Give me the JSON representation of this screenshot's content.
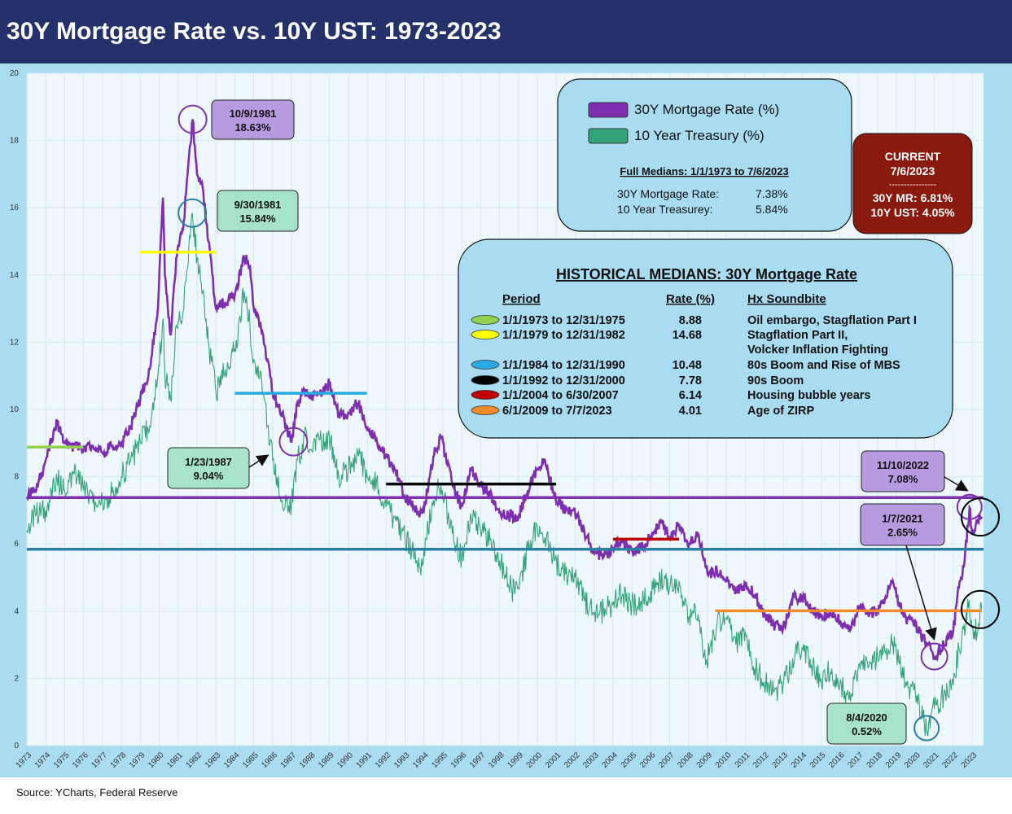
{
  "title": "30Y Mortgage Rate vs. 10Y UST: 1973-2023",
  "source": "Source: YCharts, Federal Reserve",
  "colors": {
    "mortgage": "#7d2fb0",
    "treasury": "#35a37a",
    "mortgage_median_line": "#7d2fb0",
    "treasury_median_line": "#2a7fa3",
    "header_bg": "#24316a",
    "frame_bg": "#a9dcf0",
    "plot_bg": "#eef8fc",
    "current_box": "#8b1a0e"
  },
  "chart_data": {
    "type": "line",
    "title": "30Y Mortgage Rate vs. 10Y UST: 1973-2023",
    "xlabel": "",
    "ylabel": "",
    "ylim": [
      0,
      20
    ],
    "yticks": [
      0,
      2,
      4,
      6,
      8,
      10,
      12,
      14,
      16,
      18,
      20
    ],
    "xlim": [
      1973.0,
      2023.6
    ],
    "xticks": [
      "1973",
      "1974",
      "1975",
      "1976",
      "1977",
      "1978",
      "1979",
      "1980",
      "1981",
      "1982",
      "1983",
      "1984",
      "1985",
      "1986",
      "1987",
      "1988",
      "1989",
      "1990",
      "1991",
      "1992",
      "1993",
      "1994",
      "1995",
      "1996",
      "1997",
      "1998",
      "1999",
      "2000",
      "2001",
      "2002",
      "2003",
      "2004",
      "2005",
      "2006",
      "2007",
      "2008",
      "2009",
      "2010",
      "2011",
      "2012",
      "2013",
      "2014",
      "2015",
      "2016",
      "2017",
      "2018",
      "2019",
      "2020",
      "2021",
      "2022",
      "2023"
    ],
    "grid": true,
    "legend": "top-center",
    "series": [
      {
        "name": "30Y Mortgage Rate (%)",
        "x": [
          1973.0,
          1973.5,
          1974.0,
          1974.6,
          1975.0,
          1975.5,
          1976.0,
          1976.5,
          1977.0,
          1977.5,
          1978.0,
          1978.5,
          1979.0,
          1979.5,
          1979.9,
          1980.2,
          1980.3,
          1980.6,
          1980.9,
          1981.0,
          1981.3,
          1981.5,
          1981.77,
          1982.0,
          1982.3,
          1982.6,
          1983.0,
          1983.5,
          1984.0,
          1984.5,
          1984.8,
          1985.0,
          1985.5,
          1986.0,
          1986.5,
          1987.0,
          1987.3,
          1987.8,
          1988.0,
          1988.5,
          1989.0,
          1989.5,
          1990.0,
          1990.5,
          1991.0,
          1991.5,
          1992.0,
          1992.5,
          1993.0,
          1993.8,
          1994.0,
          1994.5,
          1994.9,
          1995.5,
          1996.0,
          1996.5,
          1997.0,
          1997.5,
          1998.0,
          1998.8,
          1999.0,
          1999.5,
          2000.0,
          2000.4,
          2000.9,
          2001.5,
          2002.0,
          2002.5,
          2003.0,
          2003.5,
          2004.0,
          2004.5,
          2005.0,
          2005.5,
          2006.0,
          2006.5,
          2007.0,
          2007.5,
          2008.0,
          2008.5,
          2009.0,
          2009.5,
          2010.0,
          2010.5,
          2011.0,
          2011.5,
          2012.0,
          2012.5,
          2013.0,
          2013.5,
          2014.0,
          2014.5,
          2015.0,
          2015.5,
          2016.0,
          2016.6,
          2017.0,
          2017.5,
          2018.0,
          2018.8,
          2019.0,
          2019.5,
          2020.0,
          2020.5,
          2021.0,
          2021.5,
          2022.0,
          2022.3,
          2022.6,
          2022.86,
          2023.0,
          2023.3,
          2023.51
        ],
        "values": [
          7.4,
          7.6,
          8.5,
          9.6,
          9.0,
          8.9,
          8.8,
          8.9,
          8.7,
          8.9,
          9.0,
          9.5,
          10.3,
          11.2,
          12.8,
          16.3,
          14.0,
          12.2,
          14.5,
          14.9,
          15.6,
          17.0,
          18.63,
          17.0,
          16.6,
          15.0,
          13.0,
          13.2,
          13.4,
          14.5,
          14.3,
          13.0,
          12.2,
          10.5,
          9.9,
          9.04,
          10.2,
          10.6,
          10.3,
          10.5,
          10.8,
          9.8,
          9.9,
          10.2,
          9.5,
          9.1,
          8.6,
          8.2,
          7.4,
          6.9,
          7.0,
          8.6,
          9.2,
          7.8,
          7.1,
          8.2,
          7.7,
          7.5,
          6.9,
          6.8,
          6.8,
          7.6,
          8.2,
          8.5,
          7.4,
          7.0,
          6.9,
          6.3,
          5.8,
          5.6,
          5.9,
          6.1,
          5.8,
          5.9,
          6.2,
          6.7,
          6.2,
          6.6,
          5.9,
          6.3,
          5.1,
          5.2,
          4.9,
          4.6,
          4.8,
          4.5,
          3.9,
          3.6,
          3.5,
          4.4,
          4.4,
          4.1,
          3.8,
          4.0,
          3.7,
          3.5,
          4.1,
          3.9,
          4.0,
          4.9,
          4.4,
          3.8,
          3.6,
          3.1,
          2.65,
          3.0,
          3.4,
          4.7,
          5.5,
          7.08,
          6.3,
          6.7,
          6.81
        ]
      },
      {
        "name": "10 Year Treasury (%)",
        "x": [
          1973.0,
          1973.5,
          1974.0,
          1974.6,
          1975.0,
          1975.5,
          1976.0,
          1976.5,
          1977.0,
          1977.5,
          1978.0,
          1978.5,
          1979.0,
          1979.5,
          1979.9,
          1980.2,
          1980.3,
          1980.6,
          1980.9,
          1981.0,
          1981.3,
          1981.5,
          1981.75,
          1982.0,
          1982.3,
          1982.6,
          1983.0,
          1983.5,
          1984.0,
          1984.5,
          1984.8,
          1985.0,
          1985.5,
          1986.0,
          1986.5,
          1987.0,
          1987.3,
          1987.8,
          1988.0,
          1988.5,
          1989.0,
          1989.5,
          1990.0,
          1990.5,
          1991.0,
          1991.5,
          1992.0,
          1992.5,
          1993.0,
          1993.8,
          1994.0,
          1994.5,
          1994.9,
          1995.5,
          1996.0,
          1996.5,
          1997.0,
          1997.5,
          1998.0,
          1998.8,
          1999.0,
          1999.5,
          2000.0,
          2000.4,
          2000.9,
          2001.5,
          2002.0,
          2002.5,
          2003.0,
          2003.5,
          2004.0,
          2004.5,
          2005.0,
          2005.5,
          2006.0,
          2006.5,
          2007.0,
          2007.5,
          2008.0,
          2008.5,
          2008.9,
          2009.5,
          2010.0,
          2010.5,
          2011.0,
          2011.5,
          2012.0,
          2012.5,
          2013.0,
          2013.5,
          2014.0,
          2014.5,
          2015.0,
          2015.5,
          2016.0,
          2016.6,
          2017.0,
          2017.5,
          2018.0,
          2018.8,
          2019.0,
          2019.5,
          2020.0,
          2020.59,
          2021.0,
          2021.5,
          2022.0,
          2022.3,
          2022.8,
          2023.0,
          2023.3,
          2023.51
        ],
        "values": [
          6.4,
          6.9,
          7.0,
          7.9,
          7.6,
          8.1,
          7.6,
          7.2,
          7.3,
          7.5,
          8.0,
          8.5,
          9.0,
          9.5,
          10.8,
          12.7,
          11.0,
          10.3,
          12.5,
          12.6,
          13.0,
          14.2,
          15.84,
          14.5,
          13.5,
          12.0,
          10.5,
          11.2,
          11.8,
          13.5,
          12.5,
          11.5,
          10.5,
          8.5,
          7.3,
          7.2,
          8.5,
          9.3,
          8.8,
          9.1,
          9.2,
          8.0,
          8.2,
          8.7,
          8.0,
          7.9,
          7.1,
          6.7,
          6.2,
          5.3,
          5.8,
          7.3,
          7.8,
          6.3,
          5.6,
          6.8,
          6.4,
          6.1,
          5.5,
          4.5,
          4.7,
          5.8,
          6.5,
          6.2,
          5.5,
          5.1,
          5.0,
          4.3,
          3.9,
          4.0,
          4.2,
          4.5,
          4.2,
          4.3,
          4.6,
          5.0,
          4.7,
          4.9,
          3.8,
          3.9,
          2.4,
          3.6,
          3.8,
          3.0,
          3.4,
          2.3,
          1.9,
          1.6,
          1.8,
          2.6,
          2.9,
          2.4,
          2.0,
          2.2,
          1.8,
          1.5,
          2.4,
          2.3,
          2.6,
          3.1,
          2.7,
          1.9,
          1.5,
          0.52,
          1.1,
          1.5,
          1.8,
          2.9,
          4.1,
          3.5,
          3.4,
          4.05
        ]
      }
    ],
    "median_lines": [
      {
        "name": "30Y Mortgage Rate full median",
        "value": 7.38,
        "color": "#7d2fb0"
      },
      {
        "name": "10 Year Treasury full median",
        "value": 5.84,
        "color": "#2a7fa3"
      }
    ],
    "period_medians": [
      {
        "x0": 1973.0,
        "x1": 1975.99,
        "value": 8.88,
        "color": "#92d050"
      },
      {
        "x0": 1979.0,
        "x1": 1982.99,
        "value": 14.68,
        "color": "#ffff00"
      },
      {
        "x0": 1984.0,
        "x1": 1990.99,
        "value": 10.48,
        "color": "#29abe2"
      },
      {
        "x0": 1992.0,
        "x1": 2000.99,
        "value": 7.78,
        "color": "#000000"
      },
      {
        "x0": 2004.0,
        "x1": 2007.5,
        "value": 6.14,
        "color": "#c00000"
      },
      {
        "x0": 2009.42,
        "x1": 2023.51,
        "value": 4.01,
        "color": "#f28c28"
      }
    ]
  },
  "legend": {
    "items": [
      {
        "label": "30Y Mortgage Rate (%)",
        "color": "#7d2fb0"
      },
      {
        "label": "10 Year Treasury (%)",
        "color": "#35a37a"
      }
    ],
    "medians_title": "Full Medians: 1/1/1973 to 7/6/2023",
    "medians": [
      {
        "label": "30Y Mortgage Rate:",
        "value": "7.38%"
      },
      {
        "label": "10 Year Treasurey:",
        "value": "5.84%"
      }
    ]
  },
  "current_box": {
    "title": "CURRENT",
    "date": "7/6/2023",
    "separator": "----------------",
    "mr": "30Y MR: 6.81%",
    "ust": "10Y UST: 4.05%"
  },
  "historical": {
    "title": "HISTORICAL MEDIANS: 30Y Mortgage Rate",
    "headers": {
      "period": "Period",
      "rate": "Rate (%)",
      "soundbite": "Hx Soundbite"
    },
    "rows": [
      {
        "period": "1/1/1973 to 12/31/1975",
        "rate": "8.88",
        "soundbite": "Oil embargo, Stagflation Part I",
        "soundbite2": "",
        "color": "#92d050"
      },
      {
        "period": "1/1/1979 to 12/31/1982",
        "rate": "14.68",
        "soundbite": "Stagflation Part II,",
        "soundbite2": "Volcker Inflation Fighting",
        "color": "#ffff00"
      },
      {
        "period": "1/1/1984 to 12/31/1990",
        "rate": "10.48",
        "soundbite": "80s Boom and Rise of MBS",
        "soundbite2": "",
        "color": "#29abe2"
      },
      {
        "period": "1/1/1992 to 12/31/2000",
        "rate": "7.78",
        "soundbite": "90s Boom",
        "soundbite2": "",
        "color": "#000000"
      },
      {
        "period": "1/1/2004 to 6/30/2007",
        "rate": "6.14",
        "soundbite": "Housing bubble years",
        "soundbite2": "",
        "color": "#c00000"
      },
      {
        "period": "6/1/2009 to 7/7/2023",
        "rate": "4.01",
        "soundbite": "Age of ZIRP",
        "soundbite2": "",
        "color": "#f28c28"
      }
    ]
  },
  "callouts": [
    {
      "date": "10/9/1981",
      "value": "18.63%",
      "fill": "#b79be0"
    },
    {
      "date": "9/30/1981",
      "value": "15.84%",
      "fill": "#a6e3c9"
    },
    {
      "date": "1/23/1987",
      "value": "9.04%",
      "fill": "#a6e3c9"
    },
    {
      "date": "11/10/2022",
      "value": "7.08%",
      "fill": "#b79be0"
    },
    {
      "date": "1/7/2021",
      "value": "2.65%",
      "fill": "#b79be0"
    },
    {
      "date": "8/4/2020",
      "value": "0.52%",
      "fill": "#a6e3c9"
    }
  ]
}
